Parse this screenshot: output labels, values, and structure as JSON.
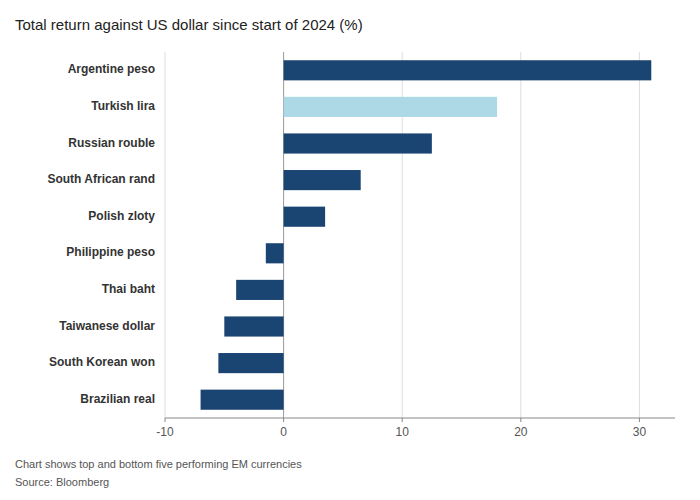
{
  "chart_data": {
    "type": "bar",
    "orientation": "horizontal",
    "title": "Total return against US dollar since start of 2024 (%)",
    "annotations": [
      "Chart shows top and bottom five performing EM currencies",
      "Source: Bloomberg"
    ],
    "categories": [
      "Argentine peso",
      "Turkish lira",
      "Russian rouble",
      "South African rand",
      "Polish zloty",
      "Philippine peso",
      "Thai baht",
      "Taiwanese dollar",
      "South Korean won",
      "Brazilian real"
    ],
    "values": [
      31.0,
      18.0,
      12.5,
      6.5,
      3.5,
      -1.5,
      -4.0,
      -5.0,
      -5.5,
      -7.0
    ],
    "colors": [
      "#1a4472",
      "#add8e6",
      "#1a4472",
      "#1a4472",
      "#1a4472",
      "#1a4472",
      "#1a4472",
      "#1a4472",
      "#1a4472",
      "#1a4472"
    ],
    "xlim": [
      -10,
      33
    ],
    "xticks": [
      -10,
      0,
      10,
      20,
      30
    ],
    "grid": true
  }
}
